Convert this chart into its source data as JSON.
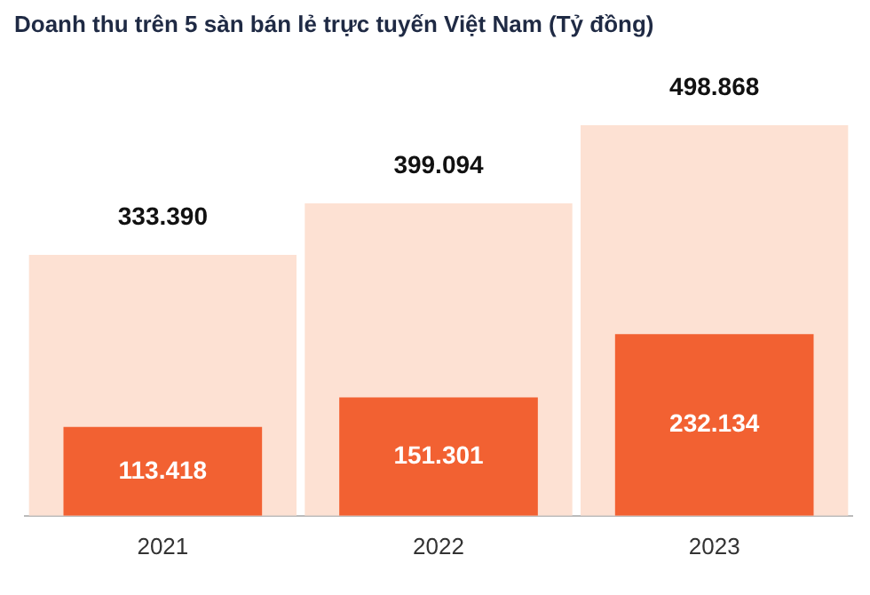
{
  "chart_data": {
    "type": "bar",
    "title": "Doanh thu trên 5 sàn bán lẻ trực tuyến Việt Nam (Tỷ đồng)",
    "categories": [
      "2021",
      "2022",
      "2023"
    ],
    "series": [
      {
        "color": "#fde1d3",
        "values": [
          333390,
          399094,
          498868
        ],
        "value_labels": [
          "333.390",
          "399.094",
          "498.868"
        ]
      },
      {
        "color": "#f26132",
        "values": [
          113418,
          151301,
          232134
        ],
        "value_labels": [
          "113.418",
          "151.301",
          "232.134"
        ]
      }
    ],
    "grid": false,
    "legend": false,
    "tick_labels": "x"
  }
}
